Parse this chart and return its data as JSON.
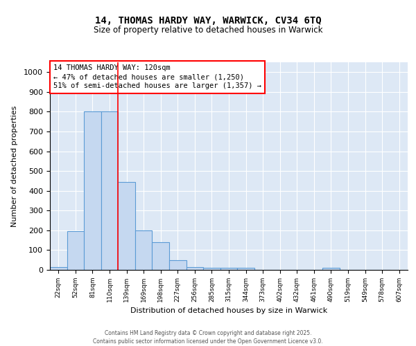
{
  "title_line1": "14, THOMAS HARDY WAY, WARWICK, CV34 6TQ",
  "title_line2": "Size of property relative to detached houses in Warwick",
  "xlabel": "Distribution of detached houses by size in Warwick",
  "ylabel": "Number of detached properties",
  "bar_values": [
    15,
    195,
    800,
    800,
    445,
    200,
    140,
    50,
    15,
    12,
    10,
    10,
    0,
    0,
    0,
    0,
    10,
    0,
    0,
    0
  ],
  "bar_labels": [
    "22sqm",
    "52sqm",
    "81sqm",
    "110sqm",
    "139sqm",
    "169sqm",
    "198sqm",
    "227sqm",
    "256sqm",
    "285sqm",
    "315sqm",
    "344sqm",
    "373sqm",
    "402sqm",
    "432sqm",
    "461sqm",
    "490sqm",
    "519sqm",
    "549sqm",
    "578sqm",
    "607sqm"
  ],
  "bar_color": "#c5d8f0",
  "bar_edge_color": "#5b9bd5",
  "background_color": "#dde8f5",
  "ylim": [
    0,
    1050
  ],
  "yticks": [
    0,
    100,
    200,
    300,
    400,
    500,
    600,
    700,
    800,
    900,
    1000
  ],
  "red_line_x": 3.5,
  "annotation_text": "14 THOMAS HARDY WAY: 120sqm\n← 47% of detached houses are smaller (1,250)\n51% of semi-detached houses are larger (1,357) →",
  "footer_line1": "Contains HM Land Registry data © Crown copyright and database right 2025.",
  "footer_line2": "Contains public sector information licensed under the Open Government Licence v3.0."
}
